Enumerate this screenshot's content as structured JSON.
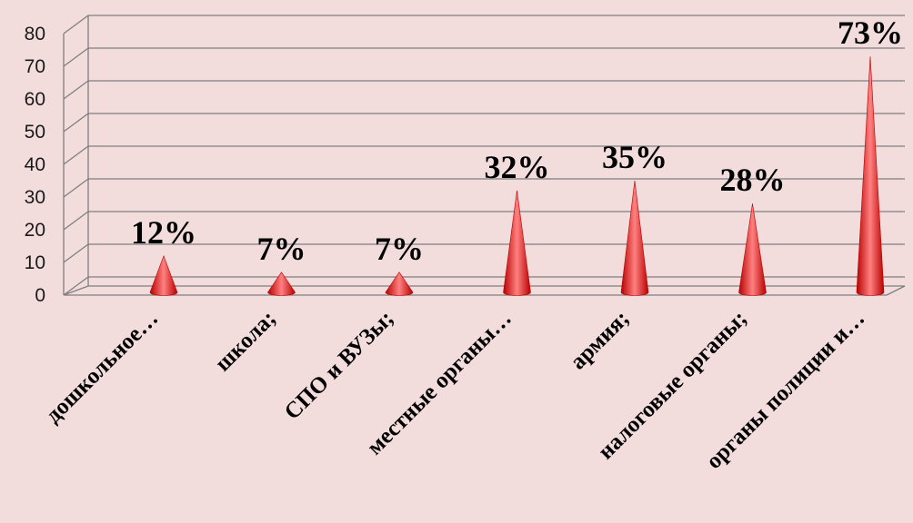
{
  "chart_data": {
    "type": "bar",
    "style": "3d-cone",
    "categories": [
      "дошкольное…",
      "школа;",
      "СПО и ВУЗы;",
      "местные органы…",
      "армия;",
      "налоговые органы;",
      "органы полиции и…"
    ],
    "values": [
      12,
      7,
      7,
      32,
      35,
      28,
      73
    ],
    "data_labels": [
      "12%",
      "7%",
      "7%",
      "32%",
      "35%",
      "28%",
      "73%"
    ],
    "yticks": [
      "0",
      "10",
      "20",
      "30",
      "40",
      "50",
      "60",
      "70",
      "80"
    ],
    "ylim": [
      0,
      80
    ],
    "grid": true,
    "legend": "none",
    "colors": {
      "cone": "#ff1a1a",
      "cone_dark": "#b80000",
      "cone_light": "#ff8080",
      "gridline": "#7f7f7f",
      "background": "#f2dcdc"
    }
  }
}
